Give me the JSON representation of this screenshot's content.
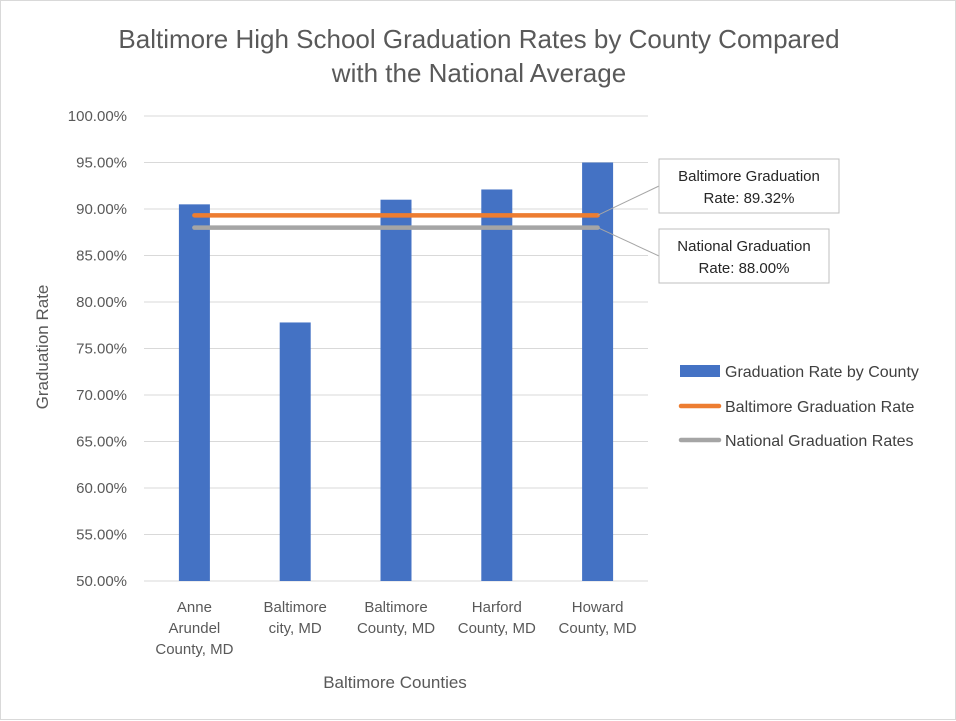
{
  "chart_data": {
    "type": "bar",
    "title": [
      "Baltimore High School Graduation Rates by County Compared",
      "with the National Average"
    ],
    "xlabel": "Baltimore Counties",
    "ylabel": "Graduation Rate",
    "ylim": [
      50,
      100
    ],
    "yticks": [
      "100.00%",
      "95.00%",
      "90.00%",
      "85.00%",
      "80.00%",
      "75.00%",
      "70.00%",
      "65.00%",
      "60.00%",
      "55.00%",
      "50.00%"
    ],
    "grid": true,
    "legend_position": "right",
    "categories": [
      [
        "Anne",
        "Arundel",
        "County, MD"
      ],
      [
        "Baltimore",
        "city, MD"
      ],
      [
        "Baltimore",
        "County, MD"
      ],
      [
        "Harford",
        "County, MD"
      ],
      [
        "Howard",
        "County, MD"
      ]
    ],
    "series": [
      {
        "name": "Graduation Rate by County",
        "kind": "bar",
        "color": "#4472c4",
        "values": [
          90.5,
          77.8,
          91.0,
          92.1,
          95.0
        ]
      },
      {
        "name": "Baltimore Graduation Rate",
        "kind": "line",
        "color": "#ed7d31",
        "value": 89.32
      },
      {
        "name": "National Graduation Rates",
        "kind": "line",
        "color": "#a5a5a5",
        "value": 88.0
      }
    ],
    "annotations": [
      {
        "lines": [
          "Baltimore Graduation",
          "Rate: 89.32%"
        ],
        "target": "Baltimore Graduation Rate"
      },
      {
        "lines": [
          "National Graduation",
          "Rate: 88.00%"
        ],
        "target": "National Graduation Rates"
      }
    ]
  }
}
